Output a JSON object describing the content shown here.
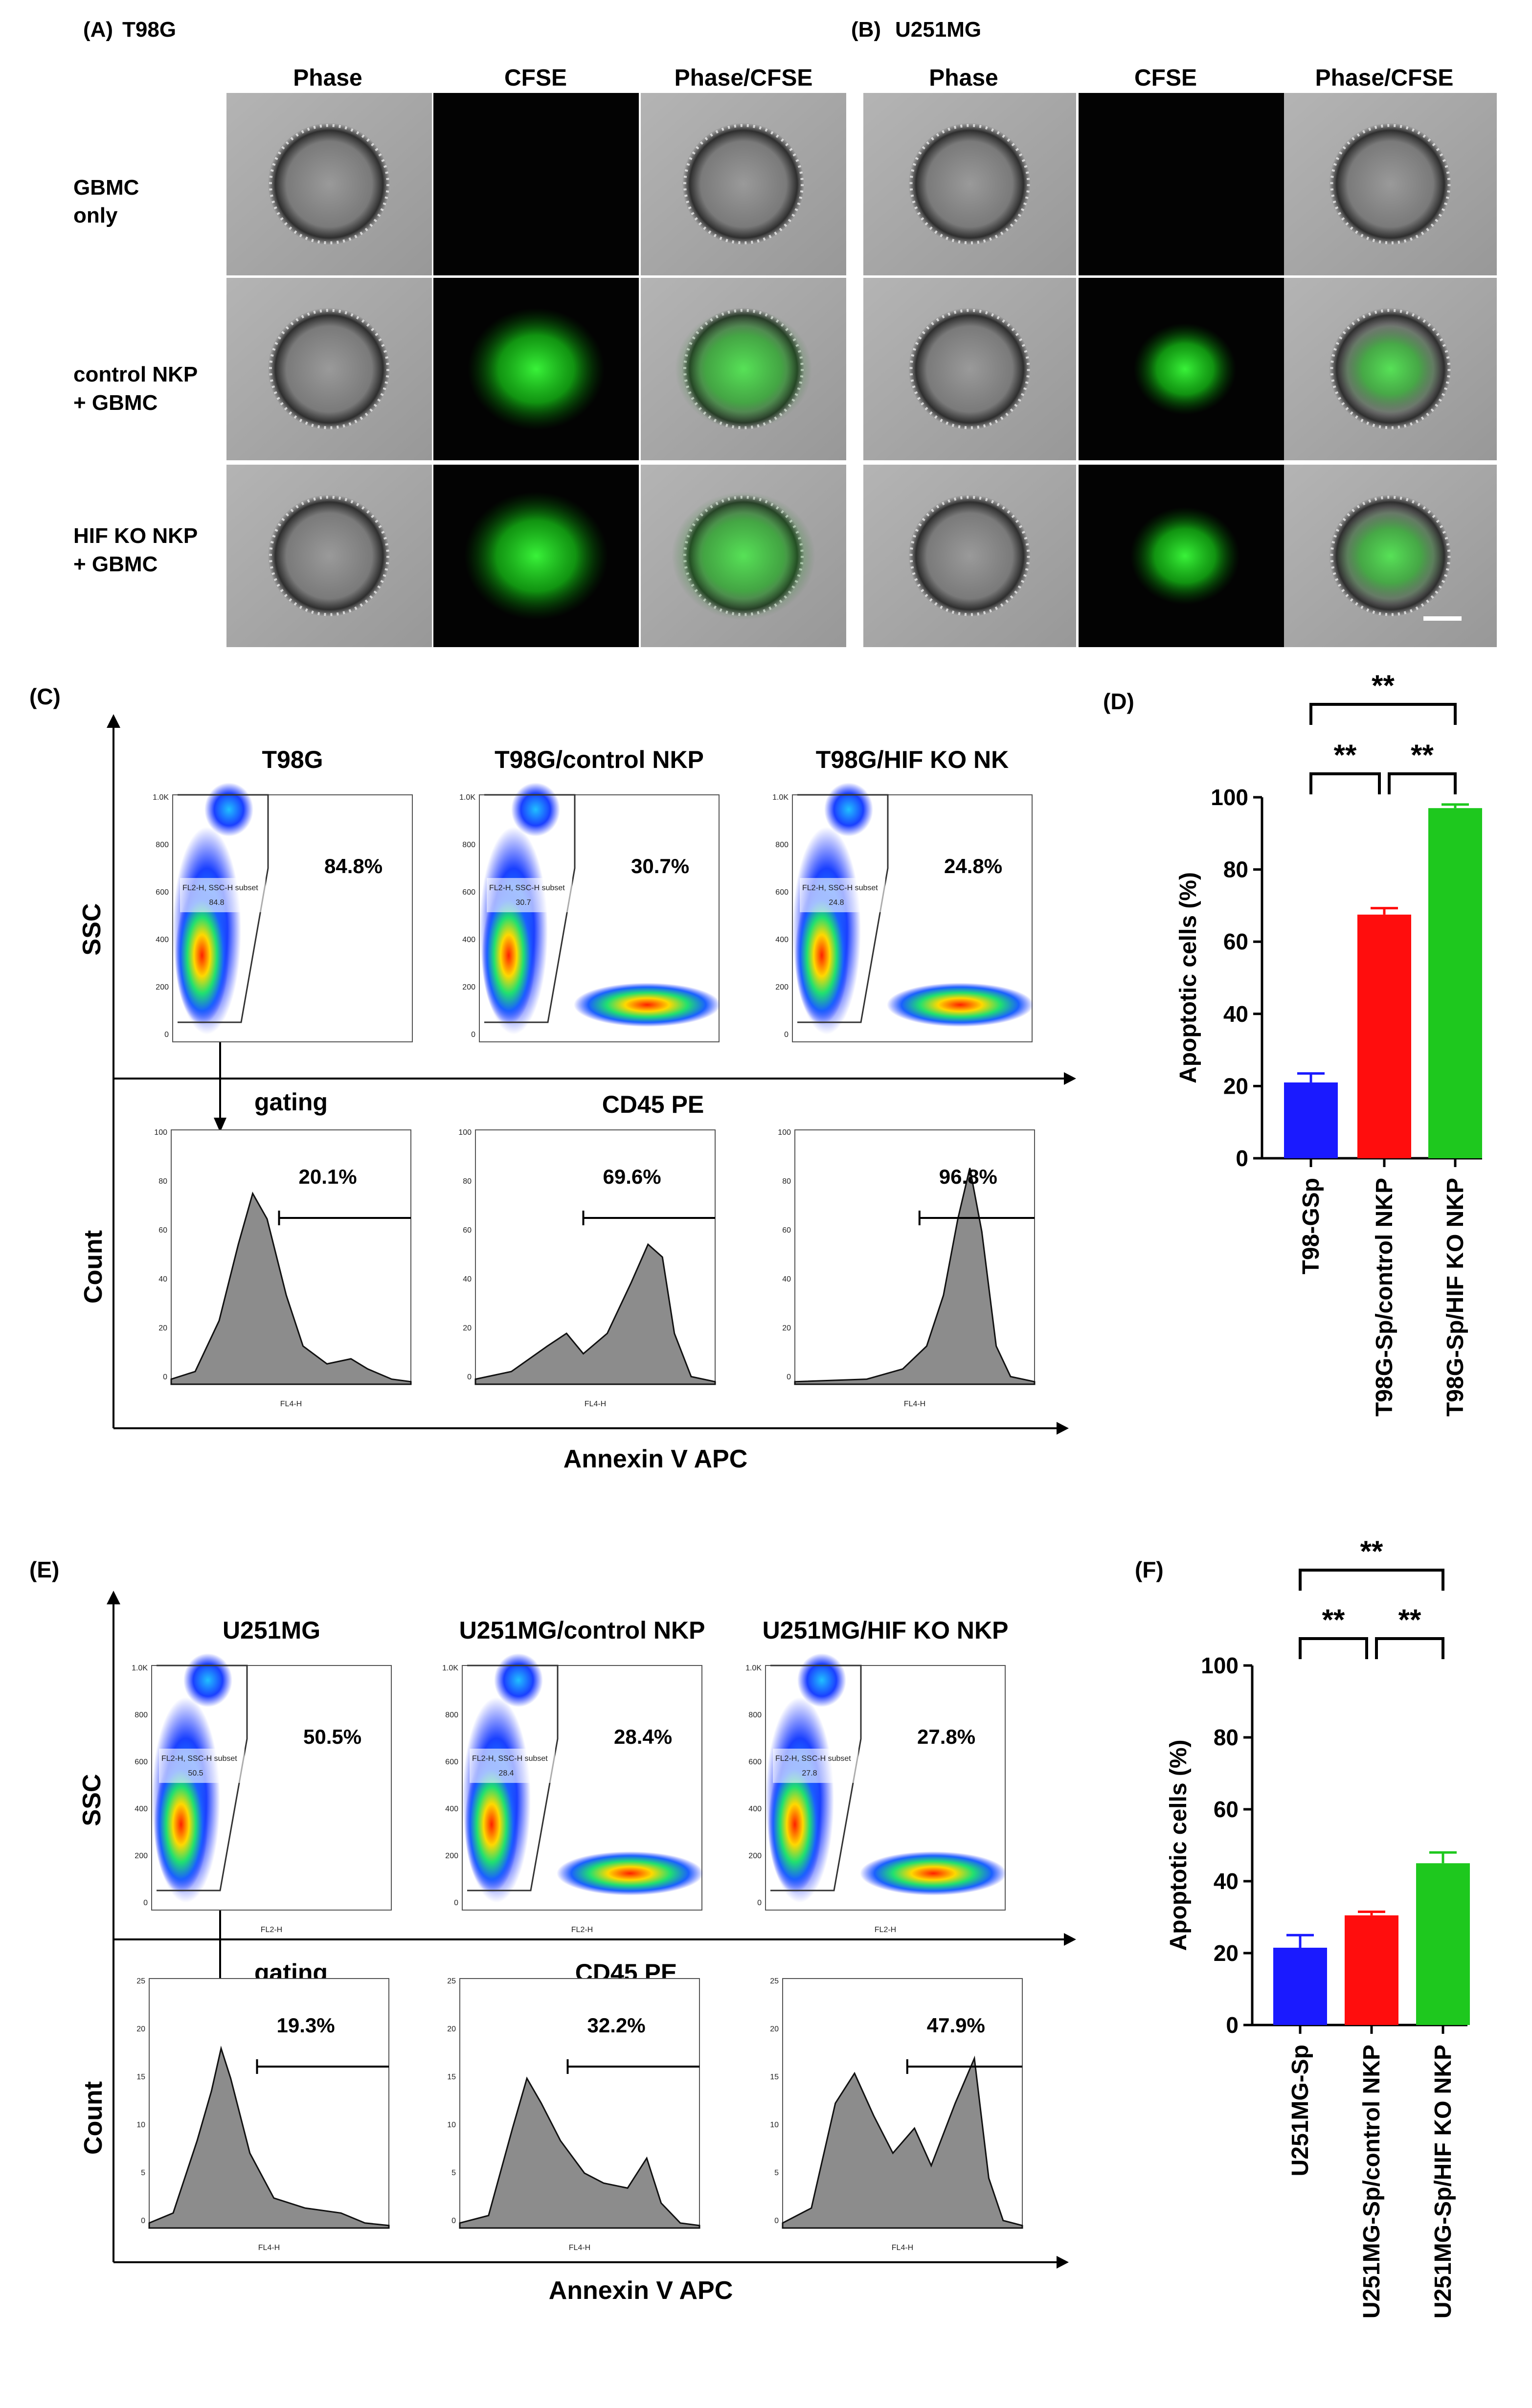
{
  "panel_a": {
    "label": "(A)",
    "title": "T98G",
    "columns": [
      "Phase",
      "CFSE",
      "Phase/CFSE"
    ],
    "rows": [
      {
        "line1": "GBMC",
        "line2": "only"
      },
      {
        "line1": "control NKP",
        "line2": "+ GBMC"
      },
      {
        "line1": "HIF KO NKP",
        "line2": "+ GBMC"
      }
    ]
  },
  "panel_b": {
    "label": "(B)",
    "title": "U251MG",
    "columns": [
      "Phase",
      "CFSE",
      "Phase/CFSE"
    ]
  },
  "panel_c": {
    "label": "(C)",
    "y_label": "SSC",
    "x_label": "CD45 PE",
    "gating_label": "gating",
    "count_label": "Count",
    "bottom_x_label": "Annexin V APC",
    "plots": [
      {
        "title": "T98G",
        "gate_pct": "84.8%",
        "subset_label": "FL2-H, SSC-H subset",
        "subset_value": "84.8",
        "hist_pct": "20.1%",
        "hist_axis": "FL4-H"
      },
      {
        "title": "T98G/control NKP",
        "gate_pct": "30.7%",
        "subset_label": "FL2-H, SSC-H subset",
        "subset_value": "30.7",
        "hist_pct": "69.6%",
        "hist_axis": "FL4-H"
      },
      {
        "title": "T98G/HIF KO NK",
        "gate_pct": "24.8%",
        "subset_label": "FL2-H, SSC-H subset",
        "subset_value": "24.8",
        "hist_pct": "96.8%",
        "hist_axis": "FL4-H"
      }
    ],
    "ssc_ticks": [
      "1.0K",
      "800",
      "600",
      "400",
      "200",
      "0"
    ],
    "count_ticks": [
      "100",
      "80",
      "60",
      "40",
      "20",
      "0"
    ]
  },
  "panel_e": {
    "label": "(E)",
    "y_label": "SSC",
    "x_label": "CD45 PE",
    "gating_label": "gating",
    "count_label": "Count",
    "bottom_x_label": "Annexin V APC",
    "plots": [
      {
        "title": "U251MG",
        "gate_pct": "50.5%",
        "subset_label": "FL2-H, SSC-H subset",
        "subset_value": "50.5",
        "hist_pct": "19.3%",
        "hist_axis": "FL4-H",
        "scatter_axis": "FL2-H"
      },
      {
        "title": "U251MG/control NKP",
        "gate_pct": "28.4%",
        "subset_label": "FL2-H, SSC-H subset",
        "subset_value": "28.4",
        "hist_pct": "32.2%",
        "hist_axis": "FL4-H",
        "scatter_axis": "FL2-H"
      },
      {
        "title": "U251MG/HIF KO NKP",
        "gate_pct": "27.8%",
        "subset_label": "FL2-H, SSC-H subset",
        "subset_value": "27.8",
        "hist_pct": "47.9%",
        "hist_axis": "FL4-H",
        "scatter_axis": "FL2-H"
      }
    ],
    "ssc_ticks": [
      "1.0K",
      "800",
      "600",
      "400",
      "200",
      "0"
    ],
    "count_ticks": [
      "25",
      "20",
      "15",
      "10",
      "5",
      "0"
    ]
  },
  "chart_data": [
    {
      "label": "(D)",
      "type": "bar",
      "categories": [
        "T98-GSp",
        "T98G-Sp/control NKP",
        "T98G-Sp/HIF KO NKP"
      ],
      "values": [
        21,
        67.5,
        97
      ],
      "errors": [
        2.5,
        1.8,
        1.0
      ],
      "colors": [
        "#1a1aff",
        "#ff0d0d",
        "#1ec81e"
      ],
      "ylabel": "Apoptotic cells (%)",
      "ylim": [
        0,
        100
      ],
      "yticks": [
        0,
        20,
        40,
        60,
        80,
        100
      ],
      "significance": [
        {
          "from": 0,
          "to": 1,
          "label": "**"
        },
        {
          "from": 1,
          "to": 2,
          "label": "**"
        },
        {
          "from": 0,
          "to": 2,
          "label": "**"
        }
      ]
    },
    {
      "label": "(F)",
      "type": "bar",
      "categories": [
        "U251MG-Sp",
        "U251MG-Sp/control NKP",
        "U251MG-Sp/HIF KO NKP"
      ],
      "values": [
        21.5,
        30.5,
        45
      ],
      "errors": [
        3.5,
        1.0,
        3.0
      ],
      "colors": [
        "#1a1aff",
        "#ff0d0d",
        "#1ec81e"
      ],
      "ylabel": "Apoptotic cells (%)",
      "ylim": [
        0,
        100
      ],
      "yticks": [
        0,
        20,
        40,
        60,
        80,
        100
      ],
      "significance": [
        {
          "from": 0,
          "to": 1,
          "label": "**"
        },
        {
          "from": 1,
          "to": 2,
          "label": "**"
        },
        {
          "from": 0,
          "to": 2,
          "label": "**"
        }
      ]
    }
  ]
}
